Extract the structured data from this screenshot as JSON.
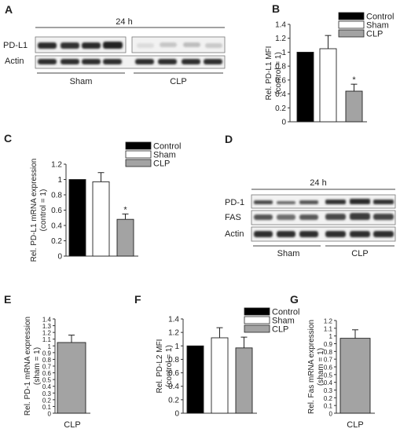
{
  "panels": {
    "A": {
      "letter": "A",
      "time": "24 h",
      "row1": "PD-L1",
      "row2": "Actin",
      "group1": "Sham",
      "group2": "CLP"
    },
    "D": {
      "letter": "D",
      "time": "24 h",
      "row1": "PD-1",
      "row2": "FAS",
      "row3": "Actin",
      "group1": "Sham",
      "group2": "CLP"
    }
  },
  "colors": {
    "control": "#000000",
    "sham": "#ffffff",
    "clp": "#a3a3a3"
  },
  "chart_data": [
    {
      "id": "B",
      "letter": "B",
      "type": "bar",
      "ylabel": [
        "Rel. PD-L1 MFI",
        "(control = 1)"
      ],
      "ylim": [
        0,
        1.4
      ],
      "yticks": [
        "0",
        "0.2",
        "0.4",
        "0.6",
        "0.8",
        "1",
        "1.2",
        "1.4"
      ],
      "legend": [
        "Control",
        "Sham",
        "CLP"
      ],
      "legend_position": "top-right",
      "bars": [
        {
          "name": "Control",
          "value": 1.0,
          "err": 0
        },
        {
          "name": "Sham",
          "value": 1.05,
          "err": 0.19
        },
        {
          "name": "CLP",
          "value": 0.44,
          "err": 0.1,
          "mark": "*"
        }
      ]
    },
    {
      "id": "C",
      "letter": "C",
      "type": "bar",
      "ylabel": [
        "Rel. PD-L1 mRNA expression",
        "(control = 1)"
      ],
      "ylim": [
        0,
        1.2
      ],
      "yticks": [
        "0",
        "0.2",
        "0.4",
        "0.6",
        "0.8",
        "1",
        "1.2"
      ],
      "legend": [
        "Control",
        "Sham",
        "CLP"
      ],
      "legend_position": "top-right",
      "bars": [
        {
          "name": "Control",
          "value": 1.0,
          "err": 0
        },
        {
          "name": "Sham",
          "value": 0.97,
          "err": 0.12
        },
        {
          "name": "CLP",
          "value": 0.48,
          "err": 0.07,
          "mark": "*"
        }
      ]
    },
    {
      "id": "E",
      "letter": "E",
      "type": "bar",
      "ylabel": [
        "Rel. PD-1 mRNA expression",
        "(sham = 1)"
      ],
      "ylim": [
        0,
        1.4
      ],
      "yticks": [
        "0",
        "0.1",
        "0.2",
        "0.3",
        "0.4",
        "0.5",
        "0.6",
        "0.7",
        "0.8",
        "0.9",
        "1",
        "1.1",
        "1.2",
        "1.3",
        "1.4"
      ],
      "xlabel": "CLP",
      "bars": [
        {
          "name": "CLP",
          "value": 1.05,
          "err": 0.11
        }
      ]
    },
    {
      "id": "F",
      "letter": "F",
      "type": "bar",
      "ylabel": [
        "Rel. PD-L2 MFI",
        "(control = 1)"
      ],
      "ylim": [
        0,
        1.4
      ],
      "yticks": [
        "0",
        "0.2",
        "0.4",
        "0.6",
        "0.8",
        "1",
        "1.2",
        "1.4"
      ],
      "legend": [
        "Control",
        "Sham",
        "CLP"
      ],
      "legend_position": "top-right",
      "bars": [
        {
          "name": "Control",
          "value": 1.0,
          "err": 0
        },
        {
          "name": "Sham",
          "value": 1.12,
          "err": 0.15
        },
        {
          "name": "CLP",
          "value": 0.97,
          "err": 0.16
        }
      ]
    },
    {
      "id": "G",
      "letter": "G",
      "type": "bar",
      "ylabel": [
        "Rel. Fas mRNA expression",
        "(sham = 1)"
      ],
      "ylim": [
        0,
        1.2
      ],
      "yticks": [
        "0",
        "0.1",
        "0.2",
        "0.3",
        "0.4",
        "0.5",
        "0.6",
        "0.7",
        "0.8",
        "0.9",
        "1",
        "1.1",
        "1.2"
      ],
      "xlabel": "CLP",
      "bars": [
        {
          "name": "CLP",
          "value": 0.97,
          "err": 0.11
        }
      ]
    }
  ]
}
